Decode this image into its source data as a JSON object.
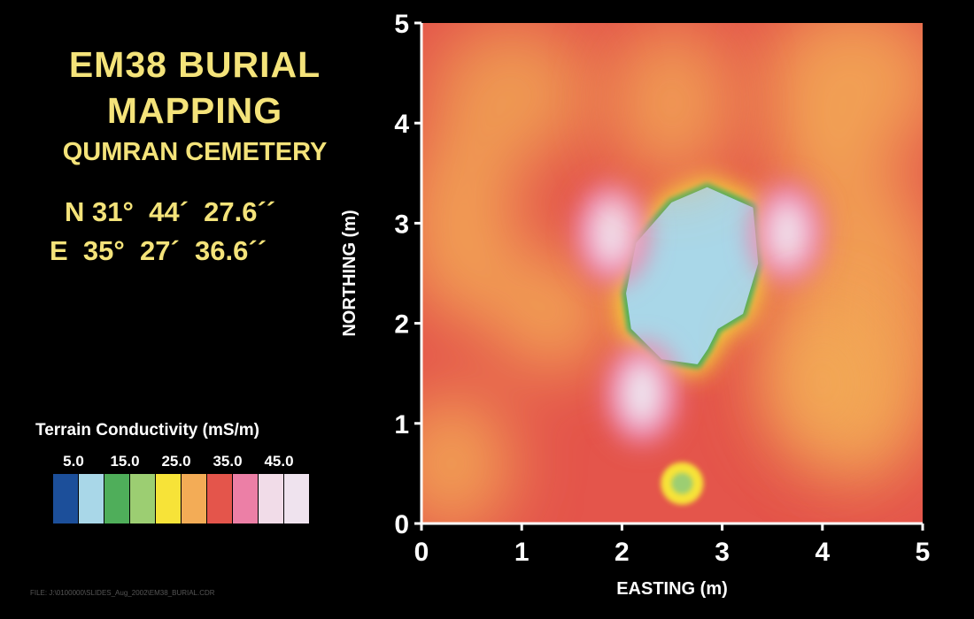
{
  "header": {
    "title_line1": "EM38 BURIAL",
    "title_line2": "MAPPING",
    "subtitle": "QUMRAN CEMETERY",
    "coord_north": "N 31°  44´  27.6´´",
    "coord_east": "E  35°  27´  36.6´´"
  },
  "legend": {
    "title": "Terrain Conductivity (mS/m)",
    "tick_labels": [
      "5.0",
      "15.0",
      "25.0",
      "35.0",
      "45.0"
    ],
    "swatch_colors": [
      "#1c4f9a",
      "#a9d7e8",
      "#4fae5a",
      "#9cce72",
      "#f7e338",
      "#f3ac56",
      "#e4554b",
      "#ec7fa6",
      "#f1dce8",
      "#efe3ee"
    ]
  },
  "footer": {
    "file_note": "FILE: J:\\0100000\\SLIDES_Aug_2002\\EM38_BURIAL.CDR"
  },
  "chart_data": {
    "type": "heatmap",
    "xlabel": "EASTING (m)",
    "ylabel": "NORTHING (m)",
    "xlim": [
      0,
      5
    ],
    "ylim": [
      0,
      5
    ],
    "xticks": [
      "0",
      "1",
      "2",
      "3",
      "4",
      "5"
    ],
    "yticks": [
      "0",
      "1",
      "2",
      "3",
      "4",
      "5"
    ],
    "value_unit": "mS/m",
    "background_value": 32,
    "features": [
      {
        "kind": "low",
        "x": [
          2.05,
          2.15,
          2.5,
          2.85,
          3.3,
          3.35,
          3.2,
          2.95,
          2.85,
          2.75,
          2.4,
          2.1
        ],
        "y": [
          2.3,
          2.8,
          3.2,
          3.35,
          3.15,
          2.6,
          2.1,
          1.95,
          1.75,
          1.6,
          1.65,
          1.95
        ],
        "value": 5
      },
      {
        "kind": "high",
        "x": 2.2,
        "y": 1.3,
        "value": 45
      },
      {
        "kind": "high",
        "x": 1.9,
        "y": 2.9,
        "value": 40
      },
      {
        "kind": "high",
        "x": 3.65,
        "y": 2.9,
        "value": 42
      },
      {
        "kind": "low",
        "x": 2.6,
        "y": 0.4,
        "value": 15
      },
      {
        "kind": "moderate",
        "x": 4.0,
        "y": 1.4,
        "value": 27
      },
      {
        "kind": "moderate",
        "x": 2.5,
        "y": 4.2,
        "value": 28
      }
    ]
  }
}
